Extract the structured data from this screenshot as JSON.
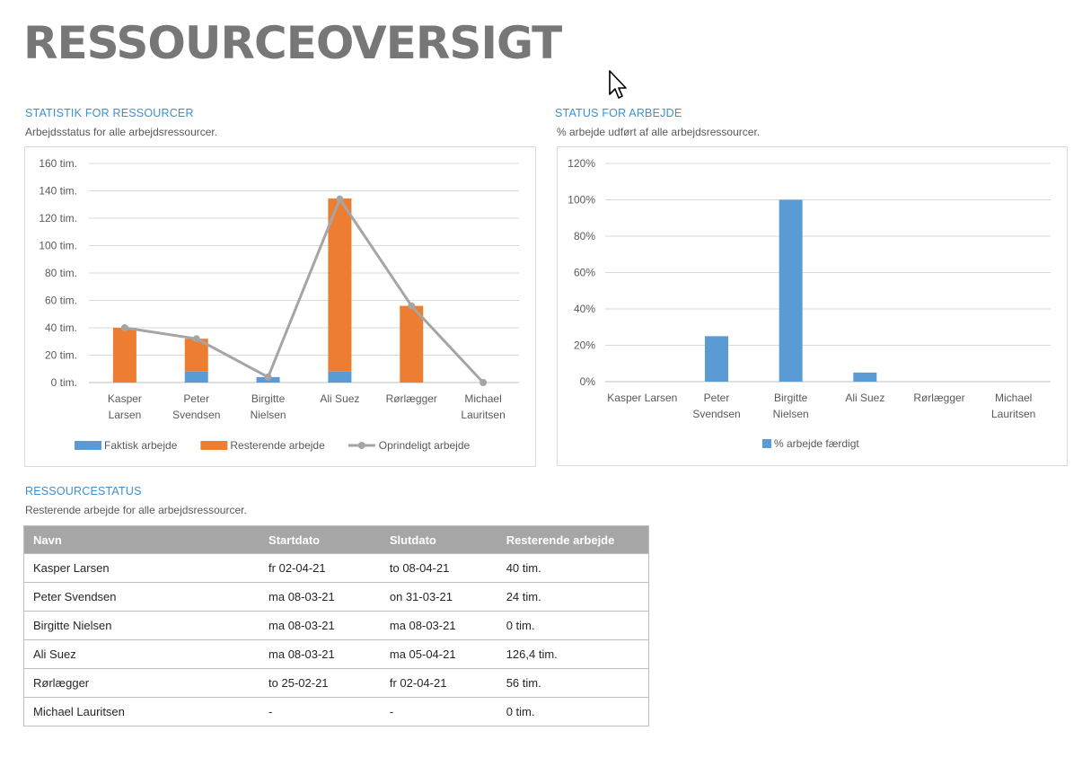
{
  "page": {
    "title": "RESSOURCEOVERSIGT"
  },
  "stats_section": {
    "title": "STATISTIK FOR RESSOURCER",
    "subtitle": "Arbejdsstatus for alle arbejdsressourcer."
  },
  "status_section": {
    "title": "STATUS FOR ARBEJDE",
    "subtitle": "% arbejde udført af alle arbejdsressourcer."
  },
  "resource_status_section": {
    "title": "RESSOURCESTATUS",
    "subtitle": "Resterende arbejde for alle arbejdsressourcer."
  },
  "colors": {
    "actual": "#5b9bd5",
    "remaining": "#ed7d31",
    "baseline": "#a5a5a5",
    "accent": "#3f8fcf",
    "header_bg": "#a6a6a6"
  },
  "chart_data": [
    {
      "type": "bar",
      "stacked": true,
      "categories": [
        [
          "Kasper",
          "Larsen"
        ],
        [
          "Peter",
          "Svendsen"
        ],
        [
          "Birgitte",
          "Nielsen"
        ],
        [
          "Ali Suez"
        ],
        [
          "Rørlægger"
        ],
        [
          "Michael",
          "Lauritsen"
        ]
      ],
      "series": [
        {
          "name": "Faktisk arbejde",
          "type": "bar",
          "color": "#5b9bd5",
          "values": [
            0,
            8,
            4,
            8,
            0,
            0
          ]
        },
        {
          "name": "Resterende arbejde",
          "type": "bar",
          "color": "#ed7d31",
          "values": [
            40,
            24,
            0,
            126.4,
            56,
            0
          ]
        },
        {
          "name": "Oprindeligt arbejde",
          "type": "line",
          "color": "#a5a5a5",
          "values": [
            40,
            32,
            4,
            134,
            56,
            0
          ]
        }
      ],
      "yticks": [
        "0 tim.",
        "20 tim.",
        "40 tim.",
        "60 tim.",
        "80 tim.",
        "100 tim.",
        "120 tim.",
        "140 tim.",
        "160 tim."
      ],
      "ylim": [
        0,
        160
      ],
      "grid": true,
      "legend": "bottom"
    },
    {
      "type": "bar",
      "categories": [
        [
          "Kasper Larsen"
        ],
        [
          "Peter",
          "Svendsen"
        ],
        [
          "Birgitte",
          "Nielsen"
        ],
        [
          "Ali Suez"
        ],
        [
          "Rørlægger"
        ],
        [
          "Michael",
          "Lauritsen"
        ]
      ],
      "series": [
        {
          "name": "% arbejde færdigt",
          "color": "#5b9bd5",
          "values": [
            0,
            25,
            100,
            5,
            0,
            0
          ]
        }
      ],
      "yticks": [
        "0%",
        "20%",
        "40%",
        "60%",
        "80%",
        "100%",
        "120%"
      ],
      "ylim": [
        0,
        120
      ],
      "grid": true,
      "legend": "bottom"
    }
  ],
  "table": {
    "headers": [
      "Navn",
      "Startdato",
      "Slutdato",
      "Resterende arbejde"
    ],
    "rows": [
      [
        "Kasper Larsen",
        "fr 02-04-21",
        "to 08-04-21",
        "40 tim."
      ],
      [
        "Peter Svendsen",
        "ma 08-03-21",
        "on 31-03-21",
        "24 tim."
      ],
      [
        "Birgitte Nielsen",
        "ma 08-03-21",
        "ma 08-03-21",
        "0 tim."
      ],
      [
        "Ali Suez",
        "ma 08-03-21",
        "ma 05-04-21",
        "126,4 tim."
      ],
      [
        "Rørlægger",
        "to 25-02-21",
        "fr 02-04-21",
        "56 tim."
      ],
      [
        "Michael Lauritsen",
        "-",
        "-",
        "0 tim."
      ]
    ]
  }
}
